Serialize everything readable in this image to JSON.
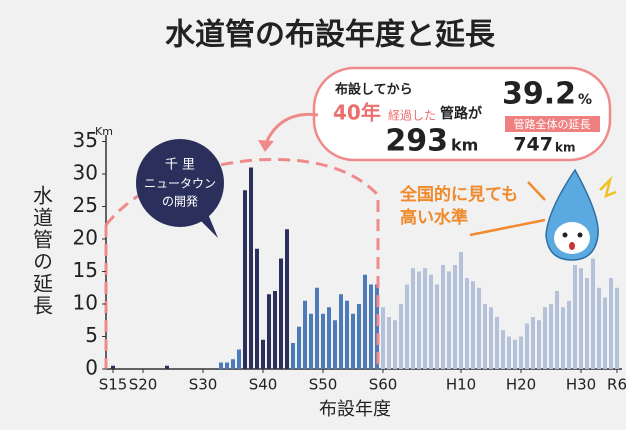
{
  "chart_data": {
    "type": "bar",
    "title": "水道管の布設年度と延長",
    "y_label": "水道管の延長",
    "y_unit": "Km",
    "x_label": "布設年度",
    "categories": [
      "S15",
      null,
      null,
      null,
      null,
      "S20",
      null,
      null,
      null,
      null,
      null,
      null,
      null,
      null,
      null,
      "S30",
      null,
      null,
      null,
      null,
      null,
      null,
      null,
      null,
      null,
      "S40",
      null,
      null,
      null,
      null,
      null,
      null,
      null,
      null,
      null,
      "S50",
      null,
      null,
      null,
      null,
      null,
      null,
      null,
      null,
      null,
      "S60",
      null,
      null,
      null,
      null,
      null,
      null,
      null,
      null,
      null,
      null,
      null,
      null,
      "H10",
      null,
      null,
      null,
      null,
      null,
      null,
      null,
      null,
      null,
      "H20",
      null,
      null,
      null,
      null,
      null,
      null,
      null,
      null,
      null,
      "H30",
      null,
      null,
      null,
      null,
      null,
      "R6"
    ],
    "values": [
      0.5,
      0,
      0,
      0,
      0,
      0,
      0,
      0,
      0,
      0.5,
      0,
      0,
      0,
      0,
      0,
      0,
      0,
      0,
      1,
      1,
      1.5,
      3,
      27.5,
      31,
      18.5,
      4.5,
      11.5,
      12,
      17,
      21.5,
      4,
      6.5,
      10.5,
      8.5,
      12.5,
      8.5,
      9.5,
      7.5,
      11.5,
      10.5,
      8.5,
      10,
      14.5,
      13,
      13,
      9.5,
      8,
      7.5,
      10,
      13,
      15.5,
      15,
      15.5,
      14.5,
      13,
      16,
      15,
      16,
      18,
      14,
      13.5,
      12.5,
      10,
      9.5,
      8,
      6,
      5,
      4.5,
      5,
      7,
      8,
      7.5,
      9.5,
      10,
      12,
      9.5,
      10.5,
      16,
      15.5,
      14,
      17,
      12.5,
      11,
      14,
      12.5
    ],
    "colors": [
      "#2b2f5c",
      "#2b2f5c",
      "#2b2f5c",
      "#2b2f5c",
      "#2b2f5c",
      "#2b2f5c",
      "#2b2f5c",
      "#2b2f5c",
      "#2b2f5c",
      "#2b2f5c",
      "#2b2f5c",
      "#2b2f5c",
      "#2b2f5c",
      "#2b2f5c",
      "#2b2f5c",
      "#2b2f5c",
      "#2b2f5c",
      "#2b2f5c",
      "#4b7bb8",
      "#4b7bb8",
      "#4b7bb8",
      "#4b7bb8",
      "#2b2f5c",
      "#2b2f5c",
      "#2b2f5c",
      "#2b2f5c",
      "#2b2f5c",
      "#2b2f5c",
      "#2b2f5c",
      "#2b2f5c",
      "#4b7bb8",
      "#4b7bb8",
      "#4b7bb8",
      "#4b7bb8",
      "#4b7bb8",
      "#4b7bb8",
      "#4b7bb8",
      "#4b7bb8",
      "#4b7bb8",
      "#4b7bb8",
      "#4b7bb8",
      "#4b7bb8",
      "#4b7bb8",
      "#4b7bb8",
      "#4b7bb8",
      "#b3c2d8",
      "#b3c2d8",
      "#b3c2d8",
      "#b3c2d8",
      "#b3c2d8",
      "#b3c2d8",
      "#b3c2d8",
      "#b3c2d8",
      "#b3c2d8",
      "#b3c2d8",
      "#b3c2d8",
      "#b3c2d8",
      "#b3c2d8",
      "#b3c2d8",
      "#b3c2d8",
      "#b3c2d8",
      "#b3c2d8",
      "#b3c2d8",
      "#b3c2d8",
      "#b3c2d8",
      "#b3c2d8",
      "#b3c2d8",
      "#b3c2d8",
      "#b3c2d8",
      "#b3c2d8",
      "#b3c2d8",
      "#b3c2d8",
      "#b3c2d8",
      "#b3c2d8",
      "#b3c2d8",
      "#b3c2d8",
      "#b3c2d8",
      "#b3c2d8",
      "#b3c2d8",
      "#b3c2d8",
      "#b3c2d8",
      "#b3c2d8",
      "#b3c2d8",
      "#b3c2d8",
      "#b3c2d8"
    ],
    "ylim": [
      0,
      36
    ],
    "yticks": [
      0,
      5,
      10,
      15,
      20,
      25,
      30,
      35
    ],
    "grid": false,
    "annotations": {
      "circle": [
        "千 里",
        "ニュータウン",
        "の開発"
      ],
      "bubble": {
        "line1": "布設してから",
        "years": "40年",
        "passed": "経過した",
        "pipes": "管路が",
        "length": 293,
        "length_unit": "km",
        "ratio": 39.2,
        "ratio_unit": "%",
        "total_label": "管路全体の延長",
        "total": 747,
        "total_unit": "km"
      },
      "national": [
        "全国的に見ても",
        "高い水準"
      ]
    }
  }
}
